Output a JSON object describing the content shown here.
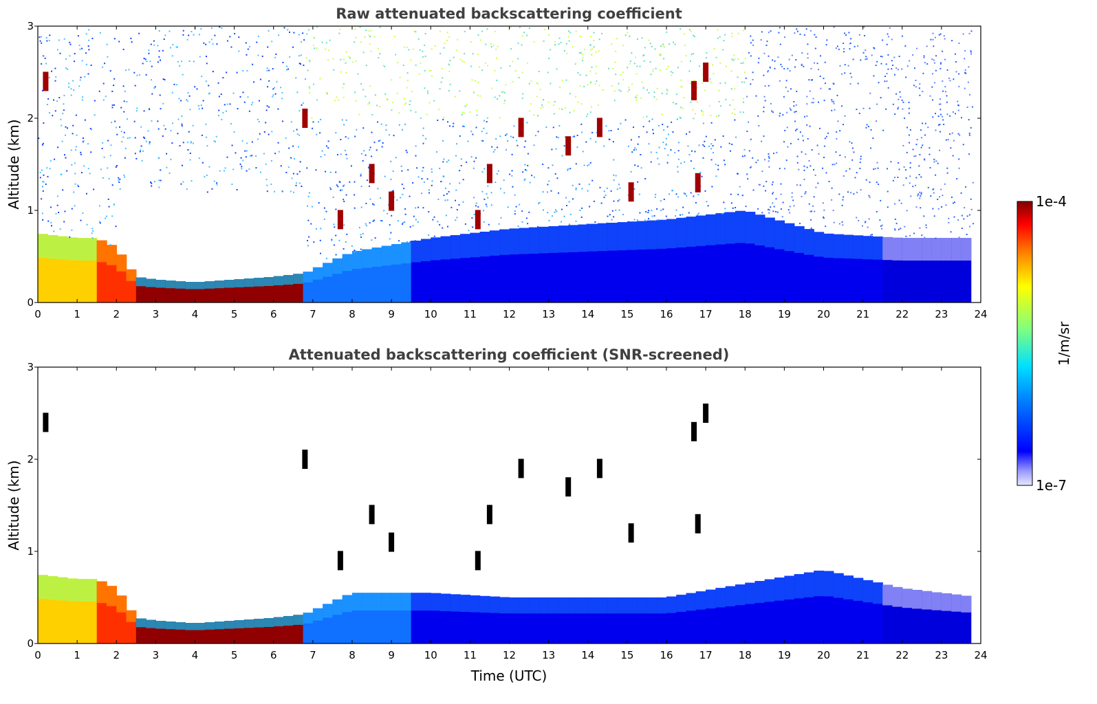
{
  "colorbar": {
    "min_label": "1e-7",
    "max_label": "1e-4",
    "label": "1/m/sr",
    "colormap": "jet",
    "low_color": "#e8e8ff",
    "high_color": "#800000"
  },
  "chart_data": [
    {
      "type": "heatmap",
      "title": "Raw attenuated backscattering coefficient",
      "xlabel": "",
      "ylabel": "Altitude (km)",
      "xlim": [
        0,
        24
      ],
      "ylim": [
        0,
        3
      ],
      "x_ticks": [
        "0",
        "1",
        "2",
        "3",
        "4",
        "5",
        "6",
        "7",
        "8",
        "9",
        "10",
        "11",
        "12",
        "13",
        "14",
        "15",
        "16",
        "17",
        "18",
        "19",
        "20",
        "21",
        "22",
        "23",
        "24"
      ],
      "y_ticks": [
        "0",
        "1",
        "2",
        "3"
      ],
      "color_scale": "log",
      "clim": [
        1e-07,
        0.0001
      ],
      "boundary_layer_top_km": [
        [
          0.0,
          0.75
        ],
        [
          1.0,
          0.7
        ],
        [
          1.5,
          0.7
        ],
        [
          2.0,
          0.6
        ],
        [
          2.5,
          0.28
        ],
        [
          3.0,
          0.25
        ],
        [
          4.0,
          0.22
        ],
        [
          5.0,
          0.25
        ],
        [
          6.0,
          0.28
        ],
        [
          6.8,
          0.32
        ],
        [
          8.0,
          0.55
        ],
        [
          10.0,
          0.7
        ],
        [
          12.0,
          0.8
        ],
        [
          14.0,
          0.85
        ],
        [
          16.0,
          0.9
        ],
        [
          18.0,
          1.0
        ],
        [
          20.0,
          0.75
        ],
        [
          22.0,
          0.7
        ],
        [
          24.0,
          0.7
        ]
      ],
      "cloud_features": [
        {
          "x": 0.2,
          "y": 2.4
        },
        {
          "x": 6.8,
          "y": 2.0
        },
        {
          "x": 12.3,
          "y": 1.9
        },
        {
          "x": 13.5,
          "y": 1.7
        },
        {
          "x": 14.3,
          "y": 1.9
        },
        {
          "x": 15.1,
          "y": 1.2
        },
        {
          "x": 16.7,
          "y": 2.3
        },
        {
          "x": 17.0,
          "y": 2.5
        },
        {
          "x": 16.8,
          "y": 1.3
        },
        {
          "x": 11.5,
          "y": 1.4
        },
        {
          "x": 11.2,
          "y": 0.9
        },
        {
          "x": 9.0,
          "y": 1.1
        },
        {
          "x": 8.5,
          "y": 1.4
        },
        {
          "x": 7.7,
          "y": 0.9
        }
      ]
    },
    {
      "type": "heatmap",
      "title": "Attenuated backscattering coefficient (SNR-screened)",
      "xlabel": "Time (UTC)",
      "ylabel": "Altitude (km)",
      "xlim": [
        0,
        24
      ],
      "ylim": [
        0,
        3
      ],
      "x_ticks": [
        "0",
        "1",
        "2",
        "3",
        "4",
        "5",
        "6",
        "7",
        "8",
        "9",
        "10",
        "11",
        "12",
        "13",
        "14",
        "15",
        "16",
        "17",
        "18",
        "19",
        "20",
        "21",
        "22",
        "23",
        "24"
      ],
      "y_ticks": [
        "0",
        "1",
        "2",
        "3"
      ],
      "color_scale": "log",
      "clim": [
        1e-07,
        0.0001
      ],
      "boundary_layer_top_km": [
        [
          0.0,
          0.75
        ],
        [
          1.0,
          0.7
        ],
        [
          1.5,
          0.7
        ],
        [
          2.0,
          0.6
        ],
        [
          2.5,
          0.28
        ],
        [
          3.0,
          0.25
        ],
        [
          4.0,
          0.22
        ],
        [
          5.0,
          0.25
        ],
        [
          6.0,
          0.28
        ],
        [
          6.8,
          0.32
        ],
        [
          8.0,
          0.55
        ],
        [
          10.0,
          0.55
        ],
        [
          12.0,
          0.5
        ],
        [
          14.0,
          0.5
        ],
        [
          16.0,
          0.5
        ],
        [
          18.0,
          0.65
        ],
        [
          20.0,
          0.8
        ],
        [
          22.0,
          0.6
        ],
        [
          24.0,
          0.5
        ]
      ],
      "cloud_features": [
        {
          "x": 0.2,
          "y": 2.4
        },
        {
          "x": 6.8,
          "y": 2.0
        },
        {
          "x": 12.3,
          "y": 1.9
        },
        {
          "x": 13.5,
          "y": 1.7
        },
        {
          "x": 14.3,
          "y": 1.9
        },
        {
          "x": 15.1,
          "y": 1.2
        },
        {
          "x": 16.7,
          "y": 2.3
        },
        {
          "x": 17.0,
          "y": 2.5
        },
        {
          "x": 16.8,
          "y": 1.3
        },
        {
          "x": 11.5,
          "y": 1.4
        },
        {
          "x": 11.2,
          "y": 0.9
        },
        {
          "x": 9.0,
          "y": 1.1
        },
        {
          "x": 8.5,
          "y": 1.4
        },
        {
          "x": 7.7,
          "y": 0.9
        }
      ]
    }
  ]
}
